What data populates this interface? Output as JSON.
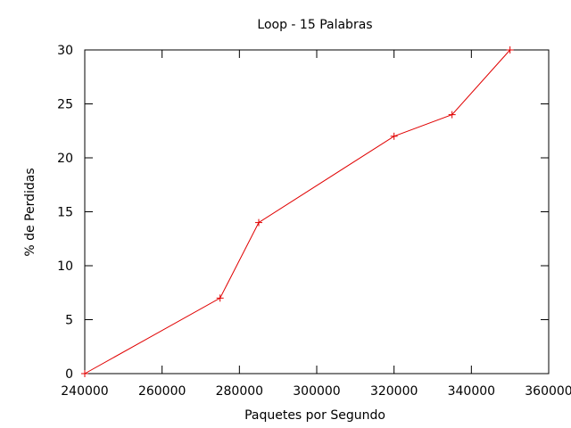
{
  "chart_data": {
    "type": "line",
    "title": "Loop - 15 Palabras",
    "xlabel": "Paquetes por Segundo",
    "ylabel": "% de Perdidas",
    "xlim": [
      240000,
      360000
    ],
    "ylim": [
      0,
      30
    ],
    "x_ticks": [
      240000,
      260000,
      280000,
      300000,
      320000,
      340000,
      360000
    ],
    "x_tick_labels": [
      "240000",
      "260000",
      "280000",
      "300000",
      "320000",
      "340000",
      "360000"
    ],
    "y_ticks": [
      0,
      5,
      10,
      15,
      20,
      25,
      30
    ],
    "y_tick_labels": [
      "0",
      "5",
      "10",
      "15",
      "20",
      "25",
      "30"
    ],
    "grid": false,
    "series": [
      {
        "color": "#e00000",
        "marker": "plus",
        "x": [
          240000,
          275000,
          285000,
          320000,
          335000,
          350000
        ],
        "y": [
          0,
          7,
          14,
          22,
          24,
          30
        ]
      }
    ]
  }
}
